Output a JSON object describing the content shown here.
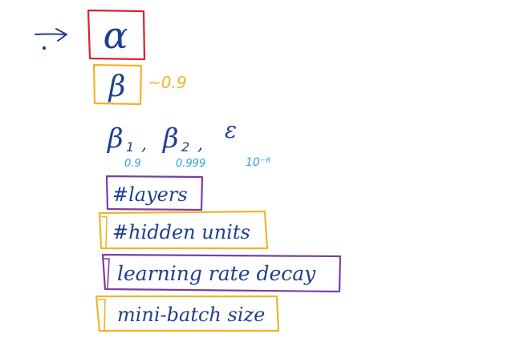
{
  "hyperparameters": {
    "alpha": {
      "symbol": "α",
      "box_color": "#d8232a"
    },
    "beta": {
      "symbol": "β",
      "default_value": "~0.9",
      "box_color": "#f0b429"
    },
    "adam": {
      "beta1": {
        "symbol": "β",
        "subscript": "1",
        "default_value": "0.9"
      },
      "beta2": {
        "symbol": "β",
        "subscript": "2",
        "default_value": "0.999"
      },
      "epsilon": {
        "symbol": "ε",
        "default_value": "10⁻⁸"
      },
      "separator": ","
    },
    "layers": {
      "label": "#layers",
      "box_color": "#7b3fa0"
    },
    "hidden_units": {
      "label": "#hidden units",
      "box_color": "#f0b429"
    },
    "learning_rate_decay": {
      "label": "learning rate decay",
      "box_color": "#7b3fa0"
    },
    "mini_batch_size": {
      "label": "mini-batch size",
      "box_color": "#f0b429"
    }
  },
  "colors": {
    "ink_blue": "#1f3f8f",
    "light_blue": "#29a3d6",
    "gold": "#f0b429",
    "red": "#d8232a",
    "purple": "#7b3fa0"
  }
}
